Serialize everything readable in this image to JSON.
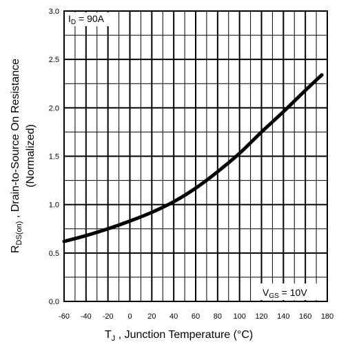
{
  "chart_data": {
    "type": "line",
    "xlabel": "T",
    "xlabel_sub": "J",
    "xlabel_rest": " , Junction Temperature (°C)",
    "ylabel": {
      "R": "R",
      "sub": "DS(on)",
      "rest": " ,  Drain-to-Source On Resistance",
      "line2": "(Normalized)"
    },
    "xlim": [
      -60,
      180
    ],
    "ylim": [
      0.0,
      3.0
    ],
    "x_ticks": [
      -60,
      -40,
      -20,
      0,
      20,
      40,
      60,
      80,
      100,
      120,
      140,
      160,
      180
    ],
    "y_ticks": [
      "0.0",
      "0.5",
      "1.0",
      "1.5",
      "2.0",
      "2.5",
      "3.0"
    ],
    "grid": true,
    "annotations": {
      "id": {
        "main": "I",
        "sub": "D",
        "rest": " = 90A"
      },
      "vgs": {
        "main": "V",
        "sub": "GS",
        "rest": " = 10V"
      }
    },
    "series": [
      {
        "x": [
          -60,
          -40,
          -20,
          0,
          20,
          40,
          60,
          80,
          100,
          120,
          140,
          160,
          175
        ],
        "y": [
          0.62,
          0.68,
          0.75,
          0.83,
          0.92,
          1.03,
          1.17,
          1.34,
          1.53,
          1.75,
          1.96,
          2.18,
          2.34
        ]
      }
    ]
  }
}
